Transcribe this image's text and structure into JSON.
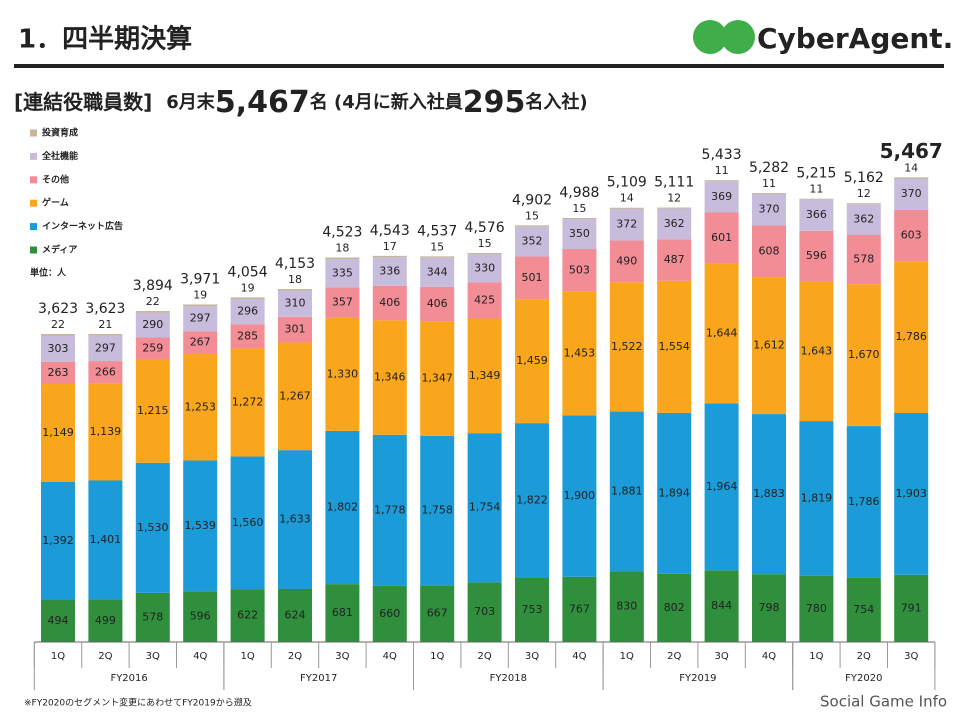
{
  "header": {
    "title": "1．四半期決算",
    "logo": "CyberAgent.",
    "subtitle_parts": [
      "[連結役職員数]",
      "6月末",
      "5,467",
      "名 (4月に新入社員",
      "295",
      "名入社)"
    ]
  },
  "chart_data": {
    "type": "stacked_bar",
    "unit": "単位：人",
    "categories": [
      "1Q",
      "2Q",
      "3Q",
      "4Q",
      "1Q",
      "2Q",
      "3Q",
      "4Q",
      "1Q",
      "2Q",
      "3Q",
      "4Q",
      "1Q",
      "2Q",
      "3Q",
      "4Q",
      "1Q",
      "2Q",
      "3Q"
    ],
    "groups": [
      {
        "name": "FY2016",
        "count": 4
      },
      {
        "name": "FY2017",
        "count": 4
      },
      {
        "name": "FY2018",
        "count": 4
      },
      {
        "name": "FY2019",
        "count": 4
      },
      {
        "name": "FY2020",
        "count": 3
      }
    ],
    "series": [
      {
        "name": "メディア",
        "color": "#2f8f3c",
        "values": [
          494,
          499,
          578,
          596,
          622,
          624,
          681,
          660,
          667,
          703,
          753,
          767,
          830,
          802,
          844,
          798,
          780,
          754,
          791
        ],
        "value_labels": [
          "494",
          "499",
          "578",
          "596",
          "622",
          "624",
          "681",
          "660",
          "667",
          "703",
          "753",
          "767",
          "830",
          "802",
          "844",
          "798",
          "780",
          "754",
          "791"
        ]
      },
      {
        "name": "インターネット広告",
        "color": "#1b9bd8",
        "values": [
          1392,
          1401,
          1530,
          1539,
          1560,
          1633,
          1802,
          1778,
          1758,
          1754,
          1822,
          1900,
          1881,
          1894,
          1964,
          1883,
          1819,
          1786,
          1903
        ],
        "value_labels": [
          "1,392",
          "1,401",
          "1,530",
          "1,539",
          "1,560",
          "1,633",
          "1,802",
          "1,778",
          "1,758",
          "1,754",
          "1,822",
          "1,900",
          "1,881",
          "1,894",
          "1,964",
          "1,883",
          "1,819",
          "1,786",
          "1,903"
        ]
      },
      {
        "name": "ゲーム",
        "color": "#f9a61c",
        "values": [
          1149,
          1139,
          1215,
          1253,
          1272,
          1267,
          1330,
          1346,
          1347,
          1349,
          1459,
          1453,
          1522,
          1554,
          1644,
          1612,
          1643,
          1670,
          1786
        ],
        "value_labels": [
          "1,149",
          "1,139",
          "1,215",
          "1,253",
          "1,272",
          "1,267",
          "1,330",
          "1,346",
          "1,347",
          "1,349",
          "1,459",
          "1,453",
          "1,522",
          "1,554",
          "1,644",
          "1,612",
          "1,643",
          "1,670",
          "1,786"
        ]
      },
      {
        "name": "その他",
        "color": "#f28c95",
        "values": [
          263,
          266,
          259,
          267,
          285,
          301,
          357,
          406,
          406,
          425,
          501,
          503,
          490,
          487,
          601,
          608,
          596,
          578,
          603
        ],
        "value_labels": [
          "263",
          "266",
          "259",
          "267",
          "285",
          "301",
          "357",
          "406",
          "406",
          "425",
          "501",
          "503",
          "490",
          "487",
          "601",
          "608",
          "596",
          "578",
          "603"
        ]
      },
      {
        "name": "全社機能",
        "color": "#c7bcdb",
        "values": [
          303,
          297,
          290,
          297,
          296,
          310,
          335,
          336,
          344,
          330,
          352,
          350,
          372,
          362,
          369,
          370,
          366,
          362,
          370
        ],
        "value_labels": [
          "303",
          "297",
          "290",
          "297",
          "296",
          "310",
          "335",
          "336",
          "344",
          "330",
          "352",
          "350",
          "372",
          "362",
          "369",
          "370",
          "366",
          "362",
          "370"
        ]
      },
      {
        "name": "投資育成",
        "color": "#c4b69b",
        "values": [
          22,
          21,
          22,
          19,
          19,
          18,
          18,
          17,
          15,
          15,
          15,
          15,
          14,
          12,
          11,
          11,
          11,
          12,
          14
        ],
        "value_labels": [
          "22",
          "21",
          "22",
          "19",
          "19",
          "18",
          "18",
          "17",
          "15",
          "15",
          "15",
          "15",
          "14",
          "12",
          "11",
          "11",
          "11",
          "12",
          "14"
        ]
      }
    ],
    "totals": {
      "values": [
        3623,
        3623,
        3894,
        3971,
        4054,
        4153,
        4523,
        4543,
        4537,
        4576,
        4902,
        4988,
        5109,
        5111,
        5433,
        5282,
        5215,
        5162,
        5467
      ],
      "value_labels": [
        "3,623",
        "3,623",
        "3,894",
        "3,971",
        "4,054",
        "4,153",
        "4,523",
        "4,543",
        "4,537",
        "4,576",
        "4,902",
        "4,988",
        "5,109",
        "5,111",
        "5,433",
        "5,282",
        "5,215",
        "5,162",
        "5,467"
      ]
    }
  },
  "footnote": "※FY2020のセグメント変更にあわせてFY2019から遡及",
  "watermark": "Social Game Info"
}
